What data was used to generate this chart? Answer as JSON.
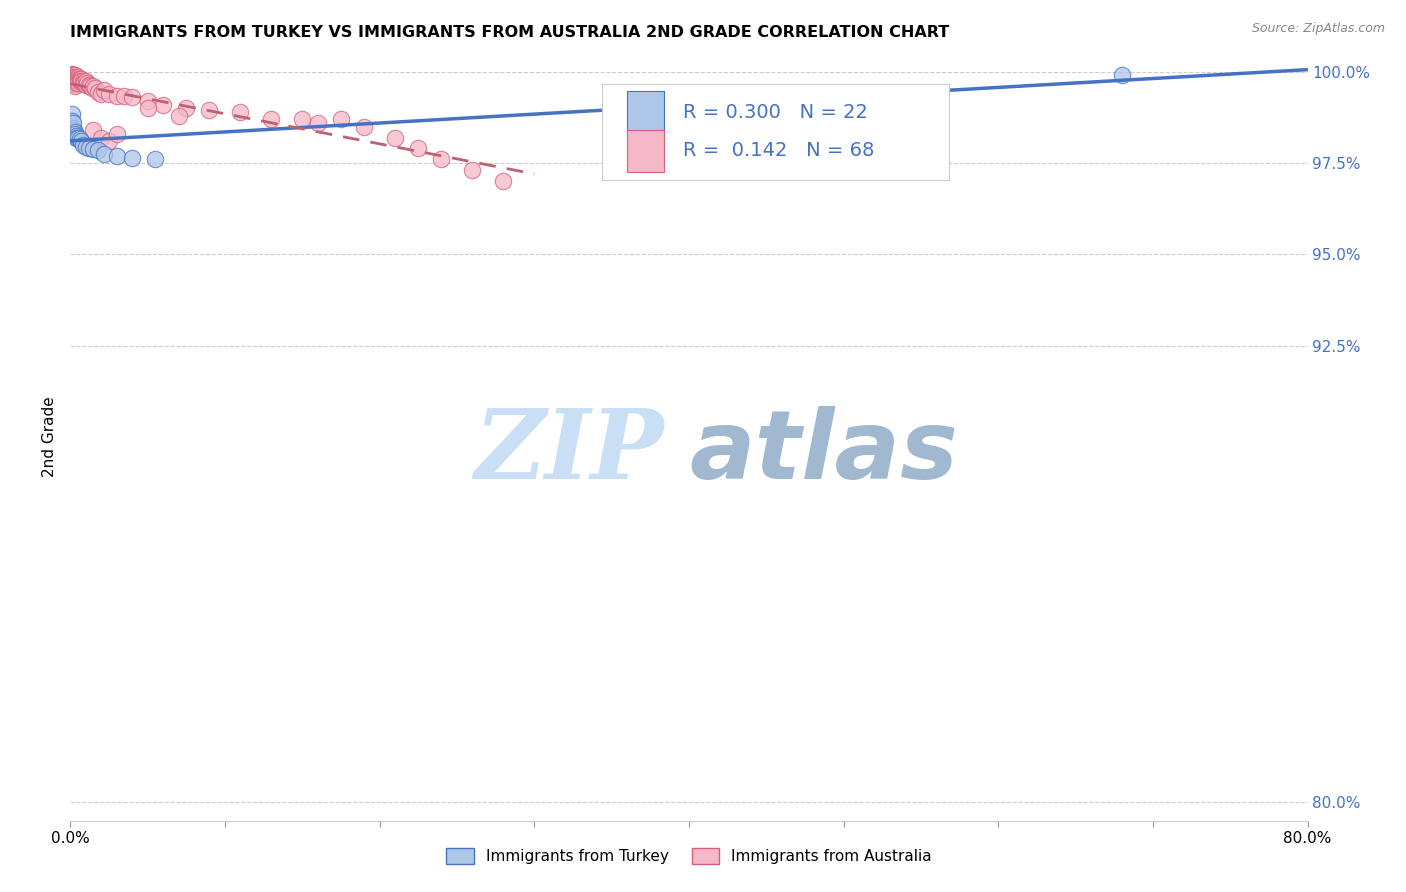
{
  "title": "IMMIGRANTS FROM TURKEY VS IMMIGRANTS FROM AUSTRALIA 2ND GRADE CORRELATION CHART",
  "source": "Source: ZipAtlas.com",
  "ylabel": "2nd Grade",
  "xlim": [
    0.0,
    0.8
  ],
  "ylim": [
    0.795,
    1.005
  ],
  "xtick_positions": [
    0.0,
    0.1,
    0.2,
    0.3,
    0.4,
    0.5,
    0.6,
    0.7,
    0.8
  ],
  "xticklabels": [
    "0.0%",
    "",
    "",
    "",
    "",
    "",
    "",
    "",
    "80.0%"
  ],
  "ytick_positions": [
    0.8,
    0.925,
    0.95,
    0.975,
    1.0
  ],
  "yticklabels_right": [
    "80.0%",
    "92.5%",
    "95.0%",
    "97.5%",
    "100.0%"
  ],
  "right_ytick_color": "#4472c4",
  "turkey_fill_color": "#aec6e8",
  "turkey_edge_color": "#4472c4",
  "australia_fill_color": "#f4b8c8",
  "australia_edge_color": "#d4607a",
  "turkey_line_color": "#4472c4",
  "australia_line_color": "#c06070",
  "legend_R_turkey": "R = 0.300",
  "legend_N_turkey": "N = 22",
  "legend_R_australia": "R =  0.142",
  "legend_N_australia": "N = 68",
  "turkey_scatter_x": [
    0.001,
    0.001,
    0.002,
    0.002,
    0.002,
    0.003,
    0.003,
    0.004,
    0.004,
    0.005,
    0.006,
    0.007,
    0.008,
    0.01,
    0.012,
    0.015,
    0.018,
    0.022,
    0.03,
    0.04,
    0.055,
    0.68
  ],
  "turkey_scatter_y": [
    0.9885,
    0.9865,
    0.9845,
    0.984,
    0.986,
    0.9835,
    0.983,
    0.9825,
    0.982,
    0.982,
    0.9815,
    0.981,
    0.98,
    0.9795,
    0.979,
    0.9788,
    0.9785,
    0.9775,
    0.977,
    0.9765,
    0.976,
    0.999
  ],
  "australia_scatter_x": [
    0.001,
    0.001,
    0.001,
    0.001,
    0.001,
    0.002,
    0.002,
    0.002,
    0.002,
    0.002,
    0.003,
    0.003,
    0.003,
    0.003,
    0.003,
    0.003,
    0.003,
    0.004,
    0.004,
    0.004,
    0.004,
    0.005,
    0.005,
    0.005,
    0.005,
    0.006,
    0.006,
    0.007,
    0.007,
    0.008,
    0.008,
    0.009,
    0.01,
    0.01,
    0.011,
    0.012,
    0.013,
    0.014,
    0.015,
    0.016,
    0.018,
    0.02,
    0.022,
    0.025,
    0.03,
    0.035,
    0.04,
    0.05,
    0.06,
    0.075,
    0.09,
    0.11,
    0.13,
    0.15,
    0.16,
    0.175,
    0.19,
    0.21,
    0.225,
    0.24,
    0.26,
    0.28,
    0.015,
    0.02,
    0.025,
    0.03,
    0.05,
    0.07
  ],
  "australia_scatter_y": [
    0.9995,
    0.999,
    0.9985,
    0.998,
    0.9975,
    0.999,
    0.9985,
    0.998,
    0.9975,
    0.997,
    0.999,
    0.9985,
    0.998,
    0.9975,
    0.997,
    0.9965,
    0.996,
    0.9985,
    0.998,
    0.9975,
    0.997,
    0.9985,
    0.998,
    0.9975,
    0.997,
    0.998,
    0.9975,
    0.998,
    0.9975,
    0.9975,
    0.997,
    0.997,
    0.9975,
    0.9965,
    0.997,
    0.9965,
    0.996,
    0.9955,
    0.996,
    0.9955,
    0.9945,
    0.994,
    0.995,
    0.994,
    0.9935,
    0.9935,
    0.993,
    0.992,
    0.991,
    0.99,
    0.9895,
    0.989,
    0.987,
    0.987,
    0.986,
    0.987,
    0.985,
    0.982,
    0.979,
    0.976,
    0.973,
    0.97,
    0.984,
    0.982,
    0.981,
    0.983,
    0.99,
    0.988
  ],
  "watermark_zip": "ZIP",
  "watermark_atlas": "atlas",
  "watermark_color_zip": "#c8dff5",
  "watermark_color_atlas": "#a0b8d0",
  "watermark_fontsize": 70,
  "background_color": "#ffffff"
}
